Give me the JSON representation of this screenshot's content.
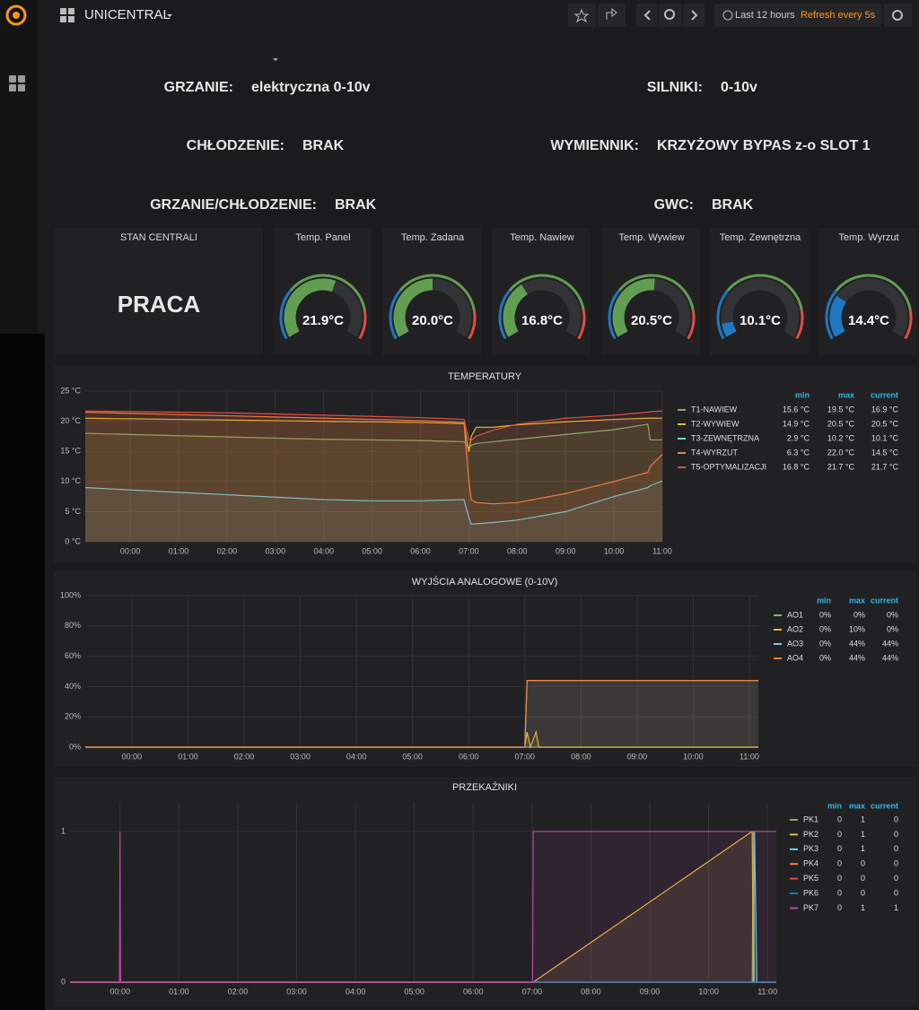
{
  "header": {
    "title": "UNICENTRAL",
    "time_range": "Last 12 hours",
    "refresh": "Refresh every 5s"
  },
  "info": [
    {
      "label": "GRZANIE:",
      "value": "elektryczna 0-10v"
    },
    {
      "label": "SILNIKI:",
      "value": "0-10v"
    },
    {
      "label": "CHŁODZENIE:",
      "value": "BRAK"
    },
    {
      "label": "WYMIENNIK:",
      "value": "KRZYŻOWY BYPAS z-o SLOT 1"
    },
    {
      "label": "GRZANIE/CHŁODZENIE:",
      "value": "BRAK"
    },
    {
      "label": "GWC:",
      "value": "BRAK"
    }
  ],
  "status": {
    "title": "STAN CENTRALI",
    "value": "PRACA"
  },
  "gauges": {
    "min": 8,
    "max": 32,
    "thresholds": [
      15,
      28
    ],
    "colors": [
      "#1f78c1",
      "#629e51",
      "#e24d42"
    ],
    "items": [
      {
        "title": "Temp. Panel",
        "value": 21.9,
        "value_label": "21.9°C"
      },
      {
        "title": "Temp. Zadana",
        "value": 20.0,
        "value_label": "20.0°C"
      },
      {
        "title": "Temp. Nawiew",
        "value": 16.8,
        "value_label": "16.8°C"
      },
      {
        "title": "Temp. Wywiew",
        "value": 20.5,
        "value_label": "20.5°C"
      },
      {
        "title": "Temp. Zewnętrzna",
        "value": 10.1,
        "value_label": "10.1°C"
      },
      {
        "title": "Temp. Wyrzut",
        "value": 14.4,
        "value_label": "14.4°C"
      }
    ]
  },
  "graphs": [
    {
      "type": "line",
      "title": "TEMPERATURY",
      "fill": true,
      "grid": true,
      "legend_columns": [
        "min",
        "max",
        "current"
      ],
      "x": [
        -0.93,
        0,
        1,
        2,
        3,
        4,
        5,
        6,
        6.9,
        7.0,
        7.05,
        7.15,
        7.5,
        8,
        9,
        10,
        10.7,
        10.75,
        11.0
      ],
      "xlim": [
        -0.93,
        11.0
      ],
      "xticks": [
        {
          "value": 0,
          "label": "00:00"
        },
        {
          "value": 1,
          "label": "01:00"
        },
        {
          "value": 2,
          "label": "02:00"
        },
        {
          "value": 3,
          "label": "03:00"
        },
        {
          "value": 4,
          "label": "04:00"
        },
        {
          "value": 5,
          "label": "05:00"
        },
        {
          "value": 6,
          "label": "06:00"
        },
        {
          "value": 7,
          "label": "07:00"
        },
        {
          "value": 8,
          "label": "08:00"
        },
        {
          "value": 9,
          "label": "09:00"
        },
        {
          "value": 10,
          "label": "10:00"
        },
        {
          "value": 11,
          "label": "11:00"
        }
      ],
      "ylim": [
        0,
        25
      ],
      "yticks": [
        {
          "value": 0,
          "label": "0 °C"
        },
        {
          "value": 5,
          "label": "5 °C"
        },
        {
          "value": 10,
          "label": "10 °C"
        },
        {
          "value": 15,
          "label": "15 °C"
        },
        {
          "value": 20,
          "label": "20 °C"
        },
        {
          "value": 25,
          "label": "25 °C"
        }
      ],
      "series": [
        {
          "name": "T1-NAWIEW",
          "color": "#7eb26d",
          "min": "15.6 °C",
          "max": "19.5 °C",
          "current": "16.9 °C",
          "values": [
            18.0,
            17.8,
            17.6,
            17.4,
            17.2,
            17.0,
            16.9,
            16.8,
            16.6,
            15.6,
            16.0,
            16.3,
            16.6,
            17.0,
            17.8,
            18.6,
            19.5,
            16.9,
            16.9
          ]
        },
        {
          "name": "T2-WYWIEW",
          "color": "#eab839",
          "min": "14.9 °C",
          "max": "20.5 °C",
          "current": "20.5 °C",
          "values": [
            20.5,
            20.4,
            20.3,
            20.2,
            20.1,
            20.0,
            19.9,
            19.8,
            19.6,
            14.9,
            17.5,
            19.0,
            19.0,
            19.4,
            19.9,
            20.3,
            20.5,
            20.5,
            20.5
          ]
        },
        {
          "name": "T3-ZEWNĘTRZNA",
          "color": "#6ed0e0",
          "min": "2.9 °C",
          "max": "10.2 °C",
          "current": "10.1 °C",
          "values": [
            9.0,
            8.6,
            8.2,
            7.8,
            7.4,
            7.0,
            6.8,
            6.8,
            7.0,
            4.0,
            2.9,
            3.0,
            3.2,
            3.6,
            5.0,
            7.5,
            9.0,
            9.3,
            10.1
          ]
        },
        {
          "name": "T4-WYRZUT",
          "color": "#ef843c",
          "min": "6.3 °C",
          "max": "22.0 °C",
          "current": "14.5 °C",
          "values": [
            21.5,
            21.3,
            21.1,
            20.9,
            20.7,
            20.5,
            20.3,
            20.1,
            19.8,
            10.0,
            7.0,
            6.5,
            6.3,
            6.5,
            8.0,
            10.0,
            11.5,
            12.5,
            14.5
          ]
        },
        {
          "name": "T5-OPTYMALIZACJI",
          "color": "#e24d42",
          "min": "16.8 °C",
          "max": "21.7 °C",
          "current": "21.7 °C",
          "values": [
            21.7,
            21.6,
            21.5,
            21.4,
            21.2,
            21.0,
            20.8,
            20.6,
            20.3,
            17.0,
            16.8,
            17.5,
            18.5,
            19.5,
            20.5,
            21.0,
            21.5,
            21.6,
            21.7
          ]
        }
      ]
    },
    {
      "type": "line",
      "title": "WYJŚCIA ANALOGOWE (0-10V)",
      "fill": true,
      "grid": true,
      "legend_columns": [
        "min",
        "max",
        "current"
      ],
      "x": [
        -0.83,
        7.0,
        7.04,
        7.1,
        7.2,
        7.25,
        11.16
      ],
      "xlim": [
        -0.83,
        11.16
      ],
      "xticks": [
        {
          "value": 0,
          "label": "00:00"
        },
        {
          "value": 1,
          "label": "01:00"
        },
        {
          "value": 2,
          "label": "02:00"
        },
        {
          "value": 3,
          "label": "03:00"
        },
        {
          "value": 4,
          "label": "04:00"
        },
        {
          "value": 5,
          "label": "05:00"
        },
        {
          "value": 6,
          "label": "06:00"
        },
        {
          "value": 7,
          "label": "07:00"
        },
        {
          "value": 8,
          "label": "08:00"
        },
        {
          "value": 9,
          "label": "09:00"
        },
        {
          "value": 10,
          "label": "10:00"
        },
        {
          "value": 11,
          "label": "11:00"
        }
      ],
      "ylim": [
        0,
        100
      ],
      "yticks": [
        {
          "value": 0,
          "label": "0%"
        },
        {
          "value": 20,
          "label": "20%"
        },
        {
          "value": 40,
          "label": "40%"
        },
        {
          "value": 60,
          "label": "60%"
        },
        {
          "value": 80,
          "label": "80%"
        },
        {
          "value": 100,
          "label": "100%"
        }
      ],
      "series": [
        {
          "name": "AO1",
          "color": "#7eb26d",
          "min": "0%",
          "max": "0%",
          "current": "0%",
          "values": [
            0,
            0,
            0,
            0,
            0,
            0,
            0
          ]
        },
        {
          "name": "AO2",
          "color": "#eab839",
          "min": "0%",
          "max": "10%",
          "current": "0%",
          "values": [
            0,
            0,
            10,
            0,
            10,
            0,
            0
          ]
        },
        {
          "name": "AO3",
          "color": "#6ed0e0",
          "min": "0%",
          "max": "44%",
          "current": "44%",
          "values": [
            0,
            0,
            44,
            44,
            44,
            44,
            44
          ]
        },
        {
          "name": "AO4",
          "color": "#ef843c",
          "min": "0%",
          "max": "44%",
          "current": "44%",
          "values": [
            0,
            0,
            44,
            44,
            44,
            44,
            44
          ]
        }
      ]
    },
    {
      "type": "line",
      "title": "PRZEKAŹNIKI",
      "fill": true,
      "grid": true,
      "legend_columns": [
        "min",
        "max",
        "current"
      ],
      "x": [
        -0.85,
        -0.01,
        0,
        0.01,
        7.01,
        7.02,
        10.74,
        10.76,
        10.78,
        10.82,
        10.84,
        11.15
      ],
      "xlim": [
        -0.85,
        11.15
      ],
      "xticks": [
        {
          "value": 0,
          "label": "00:00"
        },
        {
          "value": 1,
          "label": "01:00"
        },
        {
          "value": 2,
          "label": "02:00"
        },
        {
          "value": 3,
          "label": "03:00"
        },
        {
          "value": 4,
          "label": "04:00"
        },
        {
          "value": 5,
          "label": "05:00"
        },
        {
          "value": 6,
          "label": "06:00"
        },
        {
          "value": 7,
          "label": "07:00"
        },
        {
          "value": 8,
          "label": "08:00"
        },
        {
          "value": 9,
          "label": "09:00"
        },
        {
          "value": 10,
          "label": "10:00"
        },
        {
          "value": 11,
          "label": "11:00"
        }
      ],
      "ylim": [
        0,
        1.19
      ],
      "yticks": [
        0,
        1
      ],
      "series": [
        {
          "name": "PK1",
          "color": "#7eb26d",
          "min": 0,
          "max": 1,
          "current": 0,
          "values": [
            0,
            0,
            0,
            0,
            0,
            0,
            0,
            1,
            0,
            0,
            0,
            0
          ]
        },
        {
          "name": "PK2",
          "color": "#eab839",
          "min": 0,
          "max": 1,
          "current": 0,
          "values": [
            0,
            0,
            0,
            0,
            0,
            0,
            1,
            0,
            0,
            0,
            0,
            0
          ]
        },
        {
          "name": "PK3",
          "color": "#6ed0e0",
          "min": 0,
          "max": 1,
          "current": 0,
          "values": [
            0,
            0,
            0,
            0,
            0,
            0,
            0,
            0,
            1,
            0,
            0,
            0
          ]
        },
        {
          "name": "PK4",
          "color": "#ef843c",
          "min": 0,
          "max": 0,
          "current": 0,
          "values": [
            0,
            0,
            0,
            0,
            0,
            0,
            0,
            0,
            0,
            0,
            0,
            0
          ]
        },
        {
          "name": "PK5",
          "color": "#e24d42",
          "min": 0,
          "max": 0,
          "current": 0,
          "values": [
            0,
            0,
            0,
            0,
            0,
            0,
            0,
            0,
            0,
            0,
            0,
            0
          ]
        },
        {
          "name": "PK6",
          "color": "#1f78c1",
          "min": 0,
          "max": 0,
          "current": 0,
          "values": [
            0,
            0,
            0,
            0,
            0,
            0,
            0,
            0,
            0,
            0,
            0,
            0
          ]
        },
        {
          "name": "PK7",
          "color": "#ba43a9",
          "min": 0,
          "max": 1,
          "current": 1,
          "values": [
            0,
            0,
            1,
            0,
            0,
            1,
            1,
            1,
            1,
            1,
            1,
            1
          ]
        }
      ]
    }
  ]
}
